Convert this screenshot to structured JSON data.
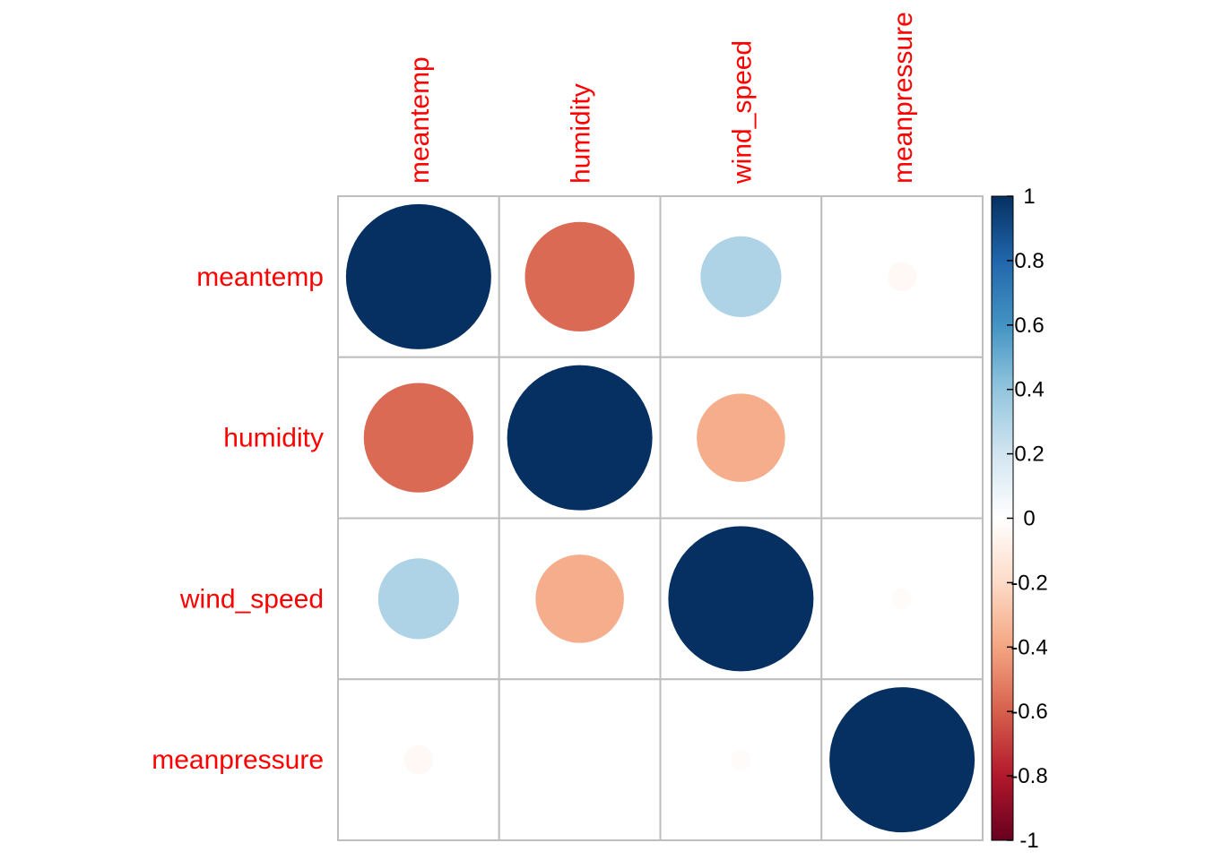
{
  "chart_data": {
    "type": "heatmap",
    "variables": [
      "meantemp",
      "humidity",
      "wind_speed",
      "meanpressure"
    ],
    "matrix": [
      [
        1.0,
        -0.57,
        0.31,
        -0.04
      ],
      [
        -0.57,
        1.0,
        -0.37,
        0.0
      ],
      [
        0.31,
        -0.37,
        1.0,
        -0.02
      ],
      [
        -0.04,
        0.0,
        -0.02,
        1.0
      ]
    ],
    "colorbar": {
      "range": [
        -1,
        1
      ],
      "ticks": [
        "1",
        "0.8",
        "0.6",
        "0.4",
        "0.2",
        "0",
        "-0.2",
        "-0.4",
        "-0.6",
        "-0.8",
        "-1"
      ],
      "tick_values": [
        1,
        0.8,
        0.6,
        0.4,
        0.2,
        0,
        -0.2,
        -0.4,
        -0.6,
        -0.8,
        -1
      ],
      "colors": [
        "#67001F",
        "#B2182B",
        "#D6604D",
        "#F4A582",
        "#FDDBC7",
        "#FFFFFF",
        "#D1E5F0",
        "#92C5DE",
        "#4393C3",
        "#2166AC",
        "#053061"
      ]
    },
    "label_color": "#FF0000",
    "grid_color": "#BEBEBE"
  }
}
